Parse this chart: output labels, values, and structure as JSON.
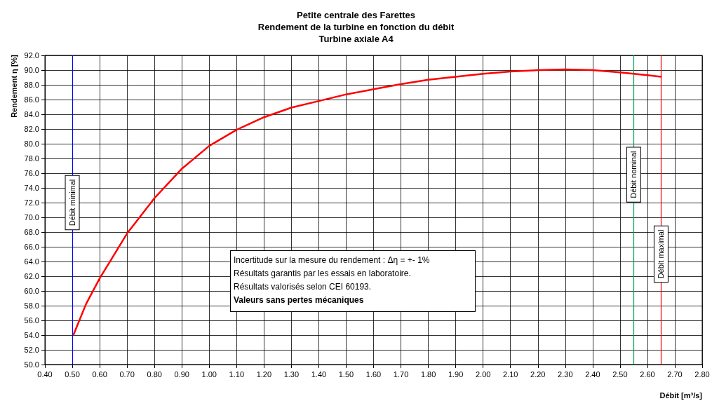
{
  "chart_data": {
    "type": "line",
    "title": "Petite centrale des Farettes\nRendement de la turbine en fonction du débit\nTurbine axiale A4",
    "xlabel": "Débit [m³/s]",
    "ylabel": "Rendement η [%]",
    "x": [
      0.505,
      0.55,
      0.6,
      0.7,
      0.8,
      0.9,
      1.0,
      1.1,
      1.2,
      1.3,
      1.4,
      1.5,
      1.6,
      1.7,
      1.8,
      1.9,
      2.0,
      2.1,
      2.2,
      2.3,
      2.4,
      2.5,
      2.6,
      2.65
    ],
    "series": [
      {
        "color": "#ff0000",
        "values": [
          54.1,
          58.2,
          61.7,
          67.8,
          72.6,
          76.6,
          79.7,
          81.9,
          83.6,
          84.9,
          85.8,
          86.7,
          87.4,
          88.1,
          88.7,
          89.1,
          89.5,
          89.8,
          90.0,
          90.1,
          90.0,
          89.7,
          89.3,
          89.1
        ]
      }
    ],
    "xlim": [
      0.4,
      2.8
    ],
    "xticks": [
      {
        "value": 0.4,
        "label": "0.40"
      },
      {
        "value": 0.5,
        "label": "0.50"
      },
      {
        "value": 0.6,
        "label": "0.60"
      },
      {
        "value": 0.7,
        "label": "0.70"
      },
      {
        "value": 0.8,
        "label": "0.80"
      },
      {
        "value": 0.9,
        "label": "0.90"
      },
      {
        "value": 1.0,
        "label": "1.00"
      },
      {
        "value": 1.1,
        "label": "1.10"
      },
      {
        "value": 1.2,
        "label": "1.20"
      },
      {
        "value": 1.3,
        "label": "1.30"
      },
      {
        "value": 1.4,
        "label": "1.40"
      },
      {
        "value": 1.5,
        "label": "1.50"
      },
      {
        "value": 1.6,
        "label": "1.60"
      },
      {
        "value": 1.7,
        "label": "1.70"
      },
      {
        "value": 1.8,
        "label": "1.80"
      },
      {
        "value": 1.9,
        "label": "1.90"
      },
      {
        "value": 2.0,
        "label": "2.00"
      },
      {
        "value": 2.1,
        "label": "2.10"
      },
      {
        "value": 2.2,
        "label": "2.20"
      },
      {
        "value": 2.3,
        "label": "2.30"
      },
      {
        "value": 2.4,
        "label": "2.40"
      },
      {
        "value": 2.5,
        "label": "2.50"
      },
      {
        "value": 2.6,
        "label": "2.60"
      },
      {
        "value": 2.7,
        "label": "2.70"
      },
      {
        "value": 2.8,
        "label": "2.80"
      }
    ],
    "ylim": [
      50,
      92
    ],
    "yticks": [
      {
        "value": 50,
        "label": "50.0"
      },
      {
        "value": 52,
        "label": "52.0"
      },
      {
        "value": 54,
        "label": "54.0"
      },
      {
        "value": 56,
        "label": "56.0"
      },
      {
        "value": 58,
        "label": "58.0"
      },
      {
        "value": 60,
        "label": "60.0"
      },
      {
        "value": 62,
        "label": "62.0"
      },
      {
        "value": 64,
        "label": "64.0"
      },
      {
        "value": 66,
        "label": "66.0"
      },
      {
        "value": 68,
        "label": "68.0"
      },
      {
        "value": 70,
        "label": "70.0"
      },
      {
        "value": 72,
        "label": "72.0"
      },
      {
        "value": 74,
        "label": "74.0"
      },
      {
        "value": 76,
        "label": "76.0"
      },
      {
        "value": 78,
        "label": "78.0"
      },
      {
        "value": 80,
        "label": "80.0"
      },
      {
        "value": 82,
        "label": "82.0"
      },
      {
        "value": 84,
        "label": "84.0"
      },
      {
        "value": 86,
        "label": "86.0"
      },
      {
        "value": 88,
        "label": "88.0"
      },
      {
        "value": 90,
        "label": "90.0"
      },
      {
        "value": 92,
        "label": "92.0"
      }
    ],
    "ref_lines": [
      {
        "axis": "x",
        "value": 0.5,
        "label": "Débit minimal",
        "color": "#0000ff"
      },
      {
        "axis": "x",
        "value": 2.55,
        "label": "Débit nominal",
        "color": "#00a050"
      },
      {
        "axis": "x",
        "value": 2.65,
        "label": "Débit maximal",
        "color": "#ff0000"
      }
    ],
    "annotations": [
      "Incertitude sur la mesure du rendement : Δη = +- 1%",
      "Résultats garantis par les essais en laboratoire.",
      "Résultats valorisés selon CEI 60193.",
      "Valeurs sans pertes mécaniques"
    ],
    "grid": true,
    "marker": "none",
    "line_style": "solid"
  }
}
